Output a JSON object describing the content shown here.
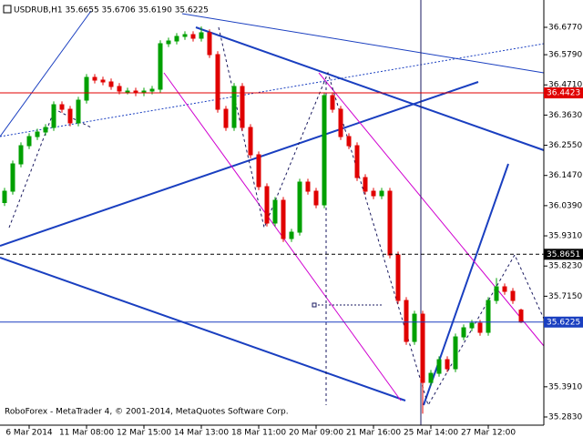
{
  "chart_data": {
    "type": "candlestick",
    "title": "USDRUB,H1 35.6655 35.6706 35.6190 35.6225",
    "footer": "RoboForex - MetaTrader 4, © 2001-2014, MetaQuotes Software Corp.",
    "up_color": "#00a000",
    "down_color": "#e00000",
    "categories": [
      null,
      null,
      null,
      "6 Mar 2014",
      null,
      null,
      null,
      null,
      null,
      null,
      "11 Mar 08:00",
      null,
      null,
      null,
      null,
      null,
      null,
      "12 Mar 15:00",
      null,
      null,
      null,
      null,
      null,
      null,
      "14 Mar 13:00",
      null,
      null,
      null,
      null,
      null,
      null,
      "18 Mar 11:00",
      null,
      null,
      null,
      null,
      null,
      null,
      "20 Mar 09:00",
      null,
      null,
      null,
      null,
      null,
      null,
      "21 Mar 16:00",
      null,
      null,
      null,
      null,
      null,
      null,
      "25 Mar 14:00",
      null,
      null,
      null,
      null,
      null,
      null,
      "27 Mar 12:00",
      null,
      null,
      null,
      null
    ],
    "open": [
      36.05,
      36.0907,
      36.1884,
      36.2535,
      36.2861,
      36.3024,
      36.3187,
      36.4001,
      36.3838,
      36.335,
      36.4164,
      36.4978,
      36.4881,
      36.4816,
      36.4653,
      36.449,
      36.449,
      36.4425,
      36.449,
      36.4555,
      36.6184,
      36.6281,
      36.6444,
      36.6509,
      36.6379,
      36.6575,
      36.5793,
      36.3838,
      36.3187,
      36.4653,
      36.3187,
      36.221,
      36.107,
      35.9767,
      36.0581,
      35.9213,
      35.9441,
      36.1233,
      36.0907,
      36.0418,
      36.4327,
      36.3838,
      36.2861,
      36.2535,
      36.1395,
      36.0907,
      36.0744,
      36.0907,
      35.8627,
      35.6998,
      35.5532,
      35.6509,
      35.4066,
      35.4392,
      35.4881,
      35.4555,
      35.5695,
      35.6021,
      35.6184,
      35.5858,
      35.6998,
      35.7487,
      35.7324,
      35.6655
    ],
    "high": [
      36.1027,
      36.2004,
      36.2655,
      36.2981,
      36.3144,
      36.3307,
      36.4121,
      36.4121,
      36.3958,
      36.4284,
      36.5098,
      36.5098,
      36.5001,
      36.4936,
      36.4773,
      36.461,
      36.461,
      36.461,
      36.4675,
      36.6304,
      36.6401,
      36.6564,
      36.6629,
      36.6629,
      36.68,
      36.6695,
      36.5913,
      36.3958,
      36.4773,
      36.4773,
      36.3307,
      36.233,
      36.119,
      36.0701,
      36.0701,
      35.9561,
      36.1353,
      36.1353,
      36.1027,
      36.4447,
      36.4447,
      36.3958,
      36.2981,
      36.2655,
      36.1515,
      36.1027,
      36.1027,
      36.1027,
      35.8747,
      35.7118,
      35.6629,
      35.6629,
      35.4512,
      35.5001,
      35.5001,
      35.5815,
      35.6141,
      35.6304,
      35.6304,
      35.7118,
      35.78,
      35.7607,
      35.7444,
      35.6706
    ],
    "low": [
      36.038,
      36.0787,
      36.1764,
      36.2415,
      36.2741,
      36.2904,
      36.3067,
      36.3718,
      36.323,
      36.323,
      36.4044,
      36.4761,
      36.4696,
      36.4533,
      36.437,
      36.437,
      36.4305,
      36.4305,
      36.437,
      36.4435,
      36.6064,
      36.6161,
      36.6324,
      36.6259,
      36.6259,
      36.5673,
      36.3718,
      36.3067,
      36.3067,
      36.3067,
      36.209,
      36.095,
      35.9647,
      35.9647,
      35.9093,
      35.9093,
      35.9321,
      36.0787,
      36.0298,
      36.0298,
      36.3718,
      36.2741,
      36.2415,
      36.1275,
      36.0787,
      36.0624,
      36.0624,
      35.8507,
      35.6878,
      35.5412,
      35.5412,
      35.295,
      35.3946,
      35.4272,
      35.4435,
      35.4435,
      35.5575,
      35.5901,
      35.5738,
      35.5738,
      35.6878,
      35.7204,
      35.6878,
      35.619
    ],
    "close": [
      36.0907,
      36.1884,
      36.2535,
      36.2861,
      36.3024,
      36.3187,
      36.4001,
      36.3838,
      36.335,
      36.4164,
      36.4978,
      36.4881,
      36.4816,
      36.4653,
      36.449,
      36.449,
      36.4425,
      36.449,
      36.4555,
      36.6184,
      36.6281,
      36.6444,
      36.6509,
      36.6379,
      36.6575,
      36.5793,
      36.3838,
      36.3187,
      36.4653,
      36.3187,
      36.221,
      36.107,
      35.9767,
      36.0581,
      35.9213,
      35.9441,
      36.1233,
      36.0907,
      36.0418,
      36.4327,
      36.3838,
      36.2861,
      36.2535,
      36.1395,
      36.0907,
      36.0744,
      36.0907,
      35.8627,
      35.6998,
      35.5532,
      35.6509,
      35.4066,
      35.4392,
      35.4881,
      35.4555,
      35.5695,
      35.6021,
      35.6184,
      35.5858,
      35.6998,
      35.7487,
      35.7324,
      35.6998,
      35.6225
    ],
    "ylim": [
      35.2537,
      36.7747
    ],
    "yticks": [
      {
        "value": 36.677,
        "label": "36.6770"
      },
      {
        "value": 36.579,
        "label": "36.5790"
      },
      {
        "value": 36.471,
        "label": "36.4710"
      },
      {
        "value": 36.363,
        "label": "36.3630"
      },
      {
        "value": 36.255,
        "label": "36.2550"
      },
      {
        "value": 36.147,
        "label": "36.1470"
      },
      {
        "value": 36.039,
        "label": "36.0390"
      },
      {
        "value": 35.931,
        "label": "35.9310"
      },
      {
        "value": 35.823,
        "label": "35.8230"
      },
      {
        "value": 35.715,
        "label": "35.7150"
      },
      {
        "value": 35.391,
        "label": "35.3910"
      },
      {
        "value": 35.283,
        "label": "35.2830"
      }
    ],
    "levels": [
      {
        "value": 36.4423,
        "color": "#e00000",
        "style": "solid"
      },
      {
        "value": 35.8651,
        "color": "#000000",
        "style": "dashed"
      },
      {
        "value": 35.6225,
        "color": "#1a3fc0",
        "style": "solid"
      }
    ]
  }
}
